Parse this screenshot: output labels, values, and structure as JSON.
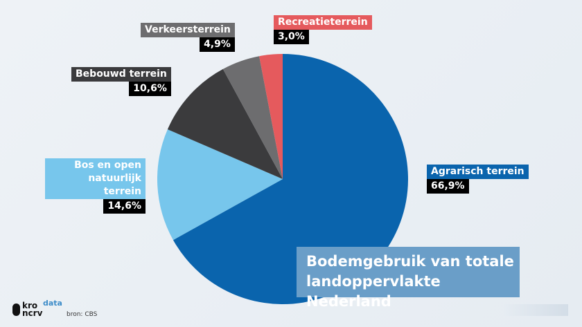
{
  "chart_data": {
    "type": "pie",
    "title": "Bodemgebruik van totale landoppervlakte Nederland",
    "start": "top",
    "direction": "clockwise",
    "slices": [
      {
        "label": "Agrarisch terrein",
        "value": 66.9,
        "value_label": "66,9%",
        "color": "#0a64ad"
      },
      {
        "label": "Bos en open natuurlijk terrein",
        "value": 14.6,
        "value_label": "14,6%",
        "color": "#77c6ec"
      },
      {
        "label": "Bebouwd terrein",
        "value": 10.6,
        "value_label": "10,6%",
        "color": "#3b3b3d"
      },
      {
        "label": "Verkeersterrein",
        "value": 4.9,
        "value_label": "4,9%",
        "color": "#6d6d6f"
      },
      {
        "label": "Recreatieterrein",
        "value": 3.0,
        "value_label": "3,0%",
        "color": "#e55a5d"
      }
    ]
  },
  "branding": {
    "logo": "kro ncrv",
    "tag": "data",
    "source": "bron: CBS"
  }
}
